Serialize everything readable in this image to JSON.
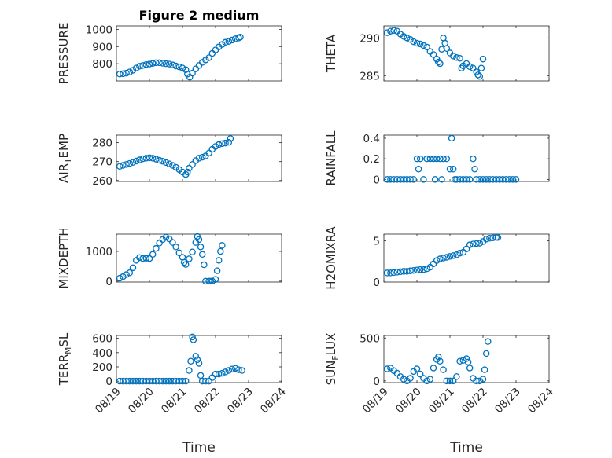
{
  "accent_color": "#0072BD",
  "chart_data": [
    {
      "id": "pressure",
      "type": "scatter",
      "title": "Figure 2 medium",
      "ylabel": "PRESSURE",
      "ylim": [
        700,
        1020
      ],
      "yticks": [
        800,
        900,
        1000
      ],
      "xlim": [
        0,
        5
      ],
      "xticks": [
        "08/19",
        "08/20",
        "08/21",
        "08/22",
        "08/23",
        "08/24"
      ],
      "show_xticklabels": false,
      "points": [
        [
          0.1,
          740
        ],
        [
          0.2,
          742
        ],
        [
          0.3,
          745
        ],
        [
          0.4,
          752
        ],
        [
          0.5,
          762
        ],
        [
          0.6,
          775
        ],
        [
          0.7,
          785
        ],
        [
          0.8,
          790
        ],
        [
          0.9,
          795
        ],
        [
          1.0,
          798
        ],
        [
          1.1,
          802
        ],
        [
          1.2,
          806
        ],
        [
          1.3,
          806
        ],
        [
          1.4,
          803
        ],
        [
          1.5,
          800
        ],
        [
          1.6,
          798
        ],
        [
          1.7,
          793
        ],
        [
          1.8,
          787
        ],
        [
          1.9,
          782
        ],
        [
          2.0,
          775
        ],
        [
          2.1,
          765
        ],
        [
          2.15,
          740
        ],
        [
          2.22,
          722
        ],
        [
          2.3,
          745
        ],
        [
          2.4,
          770
        ],
        [
          2.5,
          790
        ],
        [
          2.6,
          808
        ],
        [
          2.7,
          822
        ],
        [
          2.8,
          835
        ],
        [
          2.9,
          860
        ],
        [
          3.0,
          880
        ],
        [
          3.1,
          898
        ],
        [
          3.2,
          912
        ],
        [
          3.3,
          925
        ],
        [
          3.4,
          930
        ],
        [
          3.5,
          938
        ],
        [
          3.6,
          945
        ],
        [
          3.7,
          950
        ],
        [
          3.75,
          955
        ]
      ]
    },
    {
      "id": "theta",
      "type": "scatter",
      "title": "",
      "ylabel": "THETA",
      "ylim": [
        284.3,
        291.6
      ],
      "yticks": [
        285,
        290
      ],
      "xlim": [
        0,
        5
      ],
      "xticks": [
        "08/19",
        "08/20",
        "08/21",
        "08/22",
        "08/23",
        "08/24"
      ],
      "show_xticklabels": false,
      "points": [
        [
          0.1,
          290.7
        ],
        [
          0.2,
          290.9
        ],
        [
          0.3,
          291.0
        ],
        [
          0.4,
          290.9
        ],
        [
          0.5,
          290.5
        ],
        [
          0.6,
          290.2
        ],
        [
          0.7,
          290.0
        ],
        [
          0.8,
          289.8
        ],
        [
          0.9,
          289.5
        ],
        [
          1.0,
          289.3
        ],
        [
          1.1,
          289.2
        ],
        [
          1.2,
          289.0
        ],
        [
          1.3,
          288.8
        ],
        [
          1.4,
          288.2
        ],
        [
          1.5,
          287.8
        ],
        [
          1.6,
          287.2
        ],
        [
          1.65,
          286.8
        ],
        [
          1.7,
          286.6
        ],
        [
          1.75,
          288.5
        ],
        [
          1.8,
          290.0
        ],
        [
          1.85,
          289.3
        ],
        [
          1.9,
          288.6
        ],
        [
          2.0,
          288.0
        ],
        [
          2.1,
          287.6
        ],
        [
          2.2,
          287.4
        ],
        [
          2.3,
          287.3
        ],
        [
          2.35,
          286.0
        ],
        [
          2.4,
          286.3
        ],
        [
          2.5,
          286.6
        ],
        [
          2.6,
          286.2
        ],
        [
          2.7,
          286.0
        ],
        [
          2.8,
          285.5
        ],
        [
          2.85,
          285.1
        ],
        [
          2.9,
          284.9
        ],
        [
          2.95,
          286.0
        ],
        [
          3.0,
          287.2
        ]
      ]
    },
    {
      "id": "air_temp",
      "type": "scatter",
      "title": "",
      "ylabel": "AIR",
      "ylabel_sub": "T",
      "ylabel_rest": "EMP",
      "ylim": [
        259.5,
        284
      ],
      "yticks": [
        260,
        270,
        280
      ],
      "xlim": [
        0,
        5
      ],
      "xticks": [
        "08/19",
        "08/20",
        "08/21",
        "08/22",
        "08/23",
        "08/24"
      ],
      "show_xticklabels": false,
      "points": [
        [
          0.1,
          267.5
        ],
        [
          0.2,
          268.0
        ],
        [
          0.3,
          268.5
        ],
        [
          0.4,
          269.0
        ],
        [
          0.5,
          269.6
        ],
        [
          0.6,
          270.3
        ],
        [
          0.7,
          270.9
        ],
        [
          0.8,
          271.5
        ],
        [
          0.9,
          271.8
        ],
        [
          1.0,
          272.0
        ],
        [
          1.1,
          271.8
        ],
        [
          1.2,
          271.3
        ],
        [
          1.3,
          270.7
        ],
        [
          1.4,
          270.2
        ],
        [
          1.5,
          269.5
        ],
        [
          1.6,
          268.8
        ],
        [
          1.7,
          268.0
        ],
        [
          1.8,
          267.0
        ],
        [
          1.9,
          265.8
        ],
        [
          2.0,
          264.5
        ],
        [
          2.1,
          263.2
        ],
        [
          2.15,
          264.5
        ],
        [
          2.2,
          266.5
        ],
        [
          2.3,
          268.5
        ],
        [
          2.4,
          270.5
        ],
        [
          2.5,
          271.8
        ],
        [
          2.6,
          272.3
        ],
        [
          2.7,
          273.0
        ],
        [
          2.8,
          274.5
        ],
        [
          2.9,
          276.5
        ],
        [
          3.0,
          278.0
        ],
        [
          3.1,
          279.0
        ],
        [
          3.2,
          279.5
        ],
        [
          3.3,
          279.8
        ],
        [
          3.4,
          280.2
        ],
        [
          3.45,
          282.2
        ]
      ]
    },
    {
      "id": "rainfall",
      "type": "scatter",
      "title": "",
      "ylabel": "RAINFALL",
      "ylim": [
        -0.02,
        0.43
      ],
      "yticks": [
        0,
        0.2,
        0.4
      ],
      "xlim": [
        0,
        5
      ],
      "xticks": [
        "08/19",
        "08/20",
        "08/21",
        "08/22",
        "08/23",
        "08/24"
      ],
      "show_xticklabels": false,
      "points": [
        [
          0.1,
          0
        ],
        [
          0.2,
          0
        ],
        [
          0.3,
          0
        ],
        [
          0.4,
          0
        ],
        [
          0.5,
          0
        ],
        [
          0.6,
          0
        ],
        [
          0.7,
          0
        ],
        [
          0.8,
          0
        ],
        [
          0.9,
          0
        ],
        [
          1.0,
          0.2
        ],
        [
          1.05,
          0.1
        ],
        [
          1.1,
          0.2
        ],
        [
          1.2,
          0
        ],
        [
          1.3,
          0.2
        ],
        [
          1.4,
          0.2
        ],
        [
          1.5,
          0.2
        ],
        [
          1.55,
          0
        ],
        [
          1.6,
          0.2
        ],
        [
          1.7,
          0.2
        ],
        [
          1.75,
          0
        ],
        [
          1.8,
          0.2
        ],
        [
          1.9,
          0.2
        ],
        [
          2.0,
          0.1
        ],
        [
          2.05,
          0.4
        ],
        [
          2.1,
          0.1
        ],
        [
          2.15,
          0
        ],
        [
          2.2,
          0
        ],
        [
          2.3,
          0
        ],
        [
          2.4,
          0
        ],
        [
          2.5,
          0
        ],
        [
          2.6,
          0
        ],
        [
          2.7,
          0.2
        ],
        [
          2.75,
          0.1
        ],
        [
          2.8,
          0
        ],
        [
          2.9,
          0
        ],
        [
          3.0,
          0
        ],
        [
          3.1,
          0
        ],
        [
          3.2,
          0
        ],
        [
          3.3,
          0
        ],
        [
          3.4,
          0
        ],
        [
          3.5,
          0
        ],
        [
          3.6,
          0
        ],
        [
          3.7,
          0
        ],
        [
          3.8,
          0
        ],
        [
          3.9,
          0
        ],
        [
          4.0,
          0
        ]
      ]
    },
    {
      "id": "mixdepth",
      "type": "scatter",
      "title": "",
      "ylabel": "MIXDEPTH",
      "ylim": [
        -30,
        1580
      ],
      "yticks": [
        0,
        1000
      ],
      "xlim": [
        0,
        5
      ],
      "xticks": [
        "08/19",
        "08/20",
        "08/21",
        "08/22",
        "08/23",
        "08/24"
      ],
      "show_xticklabels": false,
      "points": [
        [
          0.1,
          100
        ],
        [
          0.2,
          150
        ],
        [
          0.3,
          220
        ],
        [
          0.4,
          280
        ],
        [
          0.5,
          450
        ],
        [
          0.6,
          700
        ],
        [
          0.7,
          790
        ],
        [
          0.8,
          760
        ],
        [
          0.9,
          770
        ],
        [
          1.0,
          760
        ],
        [
          1.1,
          900
        ],
        [
          1.2,
          1100
        ],
        [
          1.3,
          1280
        ],
        [
          1.4,
          1400
        ],
        [
          1.5,
          1480
        ],
        [
          1.6,
          1420
        ],
        [
          1.7,
          1300
        ],
        [
          1.8,
          1150
        ],
        [
          1.9,
          950
        ],
        [
          2.0,
          800
        ],
        [
          2.05,
          630
        ],
        [
          2.1,
          560
        ],
        [
          2.2,
          750
        ],
        [
          2.3,
          980
        ],
        [
          2.4,
          1300
        ],
        [
          2.45,
          1500
        ],
        [
          2.5,
          1400
        ],
        [
          2.55,
          1150
        ],
        [
          2.6,
          900
        ],
        [
          2.65,
          550
        ],
        [
          2.7,
          0
        ],
        [
          2.8,
          0
        ],
        [
          2.85,
          0
        ],
        [
          2.9,
          0
        ],
        [
          3.0,
          60
        ],
        [
          3.05,
          350
        ],
        [
          3.1,
          700
        ],
        [
          3.15,
          1000
        ],
        [
          3.2,
          1200
        ]
      ]
    },
    {
      "id": "h2omixra",
      "type": "scatter",
      "title": "",
      "ylabel": "H2OMIXRA",
      "ylim": [
        0,
        5.8
      ],
      "yticks": [
        0,
        5
      ],
      "xlim": [
        0,
        5
      ],
      "xticks": [
        "08/19",
        "08/20",
        "08/21",
        "08/22",
        "08/23",
        "08/24"
      ],
      "show_xticklabels": false,
      "points": [
        [
          0.1,
          1.1
        ],
        [
          0.2,
          1.1
        ],
        [
          0.3,
          1.15
        ],
        [
          0.4,
          1.2
        ],
        [
          0.5,
          1.25
        ],
        [
          0.6,
          1.3
        ],
        [
          0.7,
          1.3
        ],
        [
          0.8,
          1.35
        ],
        [
          0.9,
          1.4
        ],
        [
          1.0,
          1.45
        ],
        [
          1.1,
          1.5
        ],
        [
          1.2,
          1.5
        ],
        [
          1.3,
          1.6
        ],
        [
          1.4,
          1.8
        ],
        [
          1.5,
          2.2
        ],
        [
          1.6,
          2.6
        ],
        [
          1.7,
          2.8
        ],
        [
          1.8,
          2.9
        ],
        [
          1.9,
          3.0
        ],
        [
          2.0,
          3.1
        ],
        [
          2.1,
          3.2
        ],
        [
          2.2,
          3.3
        ],
        [
          2.3,
          3.5
        ],
        [
          2.4,
          3.6
        ],
        [
          2.5,
          4.0
        ],
        [
          2.6,
          4.5
        ],
        [
          2.7,
          4.6
        ],
        [
          2.8,
          4.65
        ],
        [
          2.9,
          4.7
        ],
        [
          3.0,
          4.9
        ],
        [
          3.1,
          5.2
        ],
        [
          3.2,
          5.3
        ],
        [
          3.3,
          5.35
        ],
        [
          3.4,
          5.4
        ],
        [
          3.45,
          5.4
        ]
      ]
    },
    {
      "id": "terr_msl",
      "type": "scatter",
      "title": "",
      "ylabel": "TERR",
      "ylabel_sub": "M",
      "ylabel_rest": "SL",
      "ylim": [
        -20,
        640
      ],
      "yticks": [
        0,
        200,
        400,
        600
      ],
      "xlim": [
        0,
        5
      ],
      "xticks": [
        "08/19",
        "08/20",
        "08/21",
        "08/22",
        "08/23",
        "08/24"
      ],
      "show_xticklabels": true,
      "points": [
        [
          0.1,
          0
        ],
        [
          0.2,
          0
        ],
        [
          0.3,
          0
        ],
        [
          0.4,
          0
        ],
        [
          0.5,
          0
        ],
        [
          0.6,
          0
        ],
        [
          0.7,
          0
        ],
        [
          0.8,
          0
        ],
        [
          0.9,
          0
        ],
        [
          1.0,
          0
        ],
        [
          1.1,
          0
        ],
        [
          1.2,
          0
        ],
        [
          1.3,
          0
        ],
        [
          1.4,
          0
        ],
        [
          1.5,
          0
        ],
        [
          1.6,
          0
        ],
        [
          1.7,
          0
        ],
        [
          1.8,
          0
        ],
        [
          1.9,
          0
        ],
        [
          2.0,
          0
        ],
        [
          2.1,
          0
        ],
        [
          2.2,
          150
        ],
        [
          2.25,
          280
        ],
        [
          2.3,
          620
        ],
        [
          2.33,
          580
        ],
        [
          2.4,
          350
        ],
        [
          2.45,
          300
        ],
        [
          2.5,
          250
        ],
        [
          2.55,
          80
        ],
        [
          2.6,
          0
        ],
        [
          2.7,
          0
        ],
        [
          2.8,
          0
        ],
        [
          2.9,
          50
        ],
        [
          3.0,
          100
        ],
        [
          3.1,
          100
        ],
        [
          3.2,
          110
        ],
        [
          3.3,
          130
        ],
        [
          3.4,
          150
        ],
        [
          3.5,
          170
        ],
        [
          3.6,
          180
        ],
        [
          3.7,
          160
        ],
        [
          3.8,
          150
        ]
      ]
    },
    {
      "id": "sun_flux",
      "type": "scatter",
      "title": "",
      "ylabel": "SUN",
      "ylabel_sub": "F",
      "ylabel_rest": "LUX",
      "ylim": [
        -20,
        530
      ],
      "yticks": [
        0,
        500
      ],
      "xlim": [
        0,
        5
      ],
      "xticks": [
        "08/19",
        "08/20",
        "08/21",
        "08/22",
        "08/23",
        "08/24"
      ],
      "show_xticklabels": true,
      "points": [
        [
          0.1,
          140
        ],
        [
          0.2,
          150
        ],
        [
          0.3,
          120
        ],
        [
          0.4,
          90
        ],
        [
          0.5,
          50
        ],
        [
          0.6,
          20
        ],
        [
          0.7,
          0
        ],
        [
          0.8,
          30
        ],
        [
          0.9,
          110
        ],
        [
          1.0,
          140
        ],
        [
          1.1,
          80
        ],
        [
          1.2,
          30
        ],
        [
          1.3,
          0
        ],
        [
          1.4,
          20
        ],
        [
          1.5,
          150
        ],
        [
          1.6,
          250
        ],
        [
          1.65,
          280
        ],
        [
          1.7,
          230
        ],
        [
          1.8,
          130
        ],
        [
          1.9,
          0
        ],
        [
          2.0,
          0
        ],
        [
          2.1,
          0
        ],
        [
          2.2,
          50
        ],
        [
          2.3,
          230
        ],
        [
          2.4,
          240
        ],
        [
          2.5,
          260
        ],
        [
          2.55,
          220
        ],
        [
          2.6,
          150
        ],
        [
          2.7,
          30
        ],
        [
          2.8,
          0
        ],
        [
          2.9,
          0
        ],
        [
          3.0,
          20
        ],
        [
          3.05,
          130
        ],
        [
          3.1,
          320
        ],
        [
          3.15,
          460
        ]
      ]
    }
  ]
}
